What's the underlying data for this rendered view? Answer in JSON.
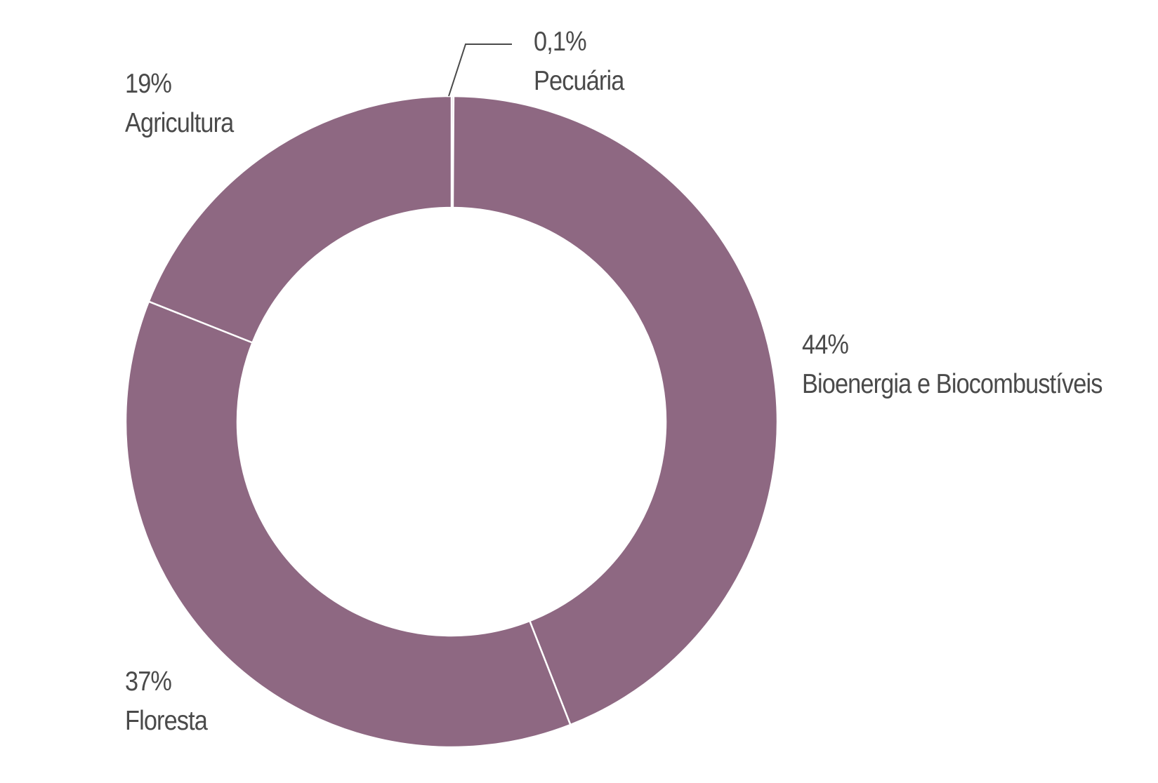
{
  "chart_data": {
    "type": "pie",
    "donut": true,
    "slice_color": "#8e6882",
    "separator_color": "#ffffff",
    "label_color": "#4a4a4a",
    "slices": [
      {
        "name": "Pecuária",
        "value": 0.1,
        "value_label": "0,1%"
      },
      {
        "name": "Bioenergia e Biocombustíveis",
        "value": 44,
        "value_label": "44%"
      },
      {
        "name": "Floresta",
        "value": 37,
        "value_label": "37%"
      },
      {
        "name": "Agricultura",
        "value": 19,
        "value_label": "19%"
      }
    ]
  }
}
